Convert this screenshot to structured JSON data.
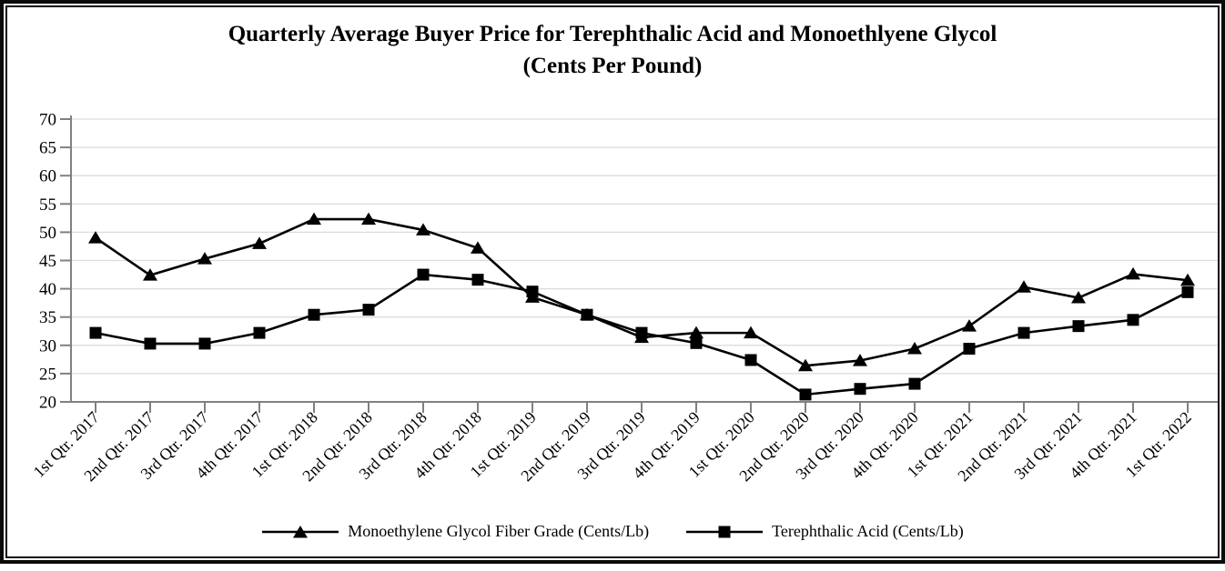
{
  "title": {
    "line1": "Quarterly Average Buyer Price for Terephthalic Acid and Monoethlyene Glycol",
    "line2": "(Cents Per Pound)"
  },
  "chart_data": {
    "type": "line",
    "title": "Quarterly Average Buyer Price for Terephthalic Acid and Monoethlyene Glycol (Cents Per Pound)",
    "categories": [
      "1st Qtr. 2017",
      "2nd Qtr. 2017",
      "3rd Qtr. 2017",
      "4th Qtr. 2017",
      "1st Qtr. 2018",
      "2nd Qtr. 2018",
      "3rd Qtr. 2018",
      "4th Qtr. 2018",
      "1st Qtr. 2019",
      "2nd Qtr. 2019",
      "3rd Qtr. 2019",
      "4th Qtr. 2019",
      "1st Qtr. 2020",
      "2nd Qtr. 2020",
      "3rd Qtr. 2020",
      "4th Qtr. 2020",
      "1st Qtr. 2021",
      "2nd Qtr. 2021",
      "3rd Qtr. 2021",
      "4th Qtr. 2021",
      "1st Qtr. 2022"
    ],
    "series": [
      {
        "name": "Monoethylene Glycol Fiber Grade (Cents/Lb)",
        "marker": "triangle",
        "color": "#000000",
        "values": [
          49.0,
          42.4,
          45.3,
          48.0,
          52.3,
          52.3,
          50.4,
          47.2,
          38.5,
          35.4,
          31.4,
          32.2,
          32.2,
          26.4,
          27.3,
          29.4,
          33.4,
          40.3,
          38.4,
          42.6,
          41.5
        ]
      },
      {
        "name": "Terephthalic Acid (Cents/Lb)",
        "marker": "square",
        "color": "#000000",
        "values": [
          32.2,
          30.3,
          30.3,
          32.2,
          35.4,
          36.3,
          42.5,
          41.6,
          39.5,
          35.4,
          32.2,
          30.4,
          27.4,
          21.3,
          22.3,
          23.2,
          29.4,
          32.2,
          33.4,
          34.5,
          39.4
        ]
      }
    ],
    "xlabel": "",
    "ylabel": "",
    "ylim": [
      20,
      70
    ],
    "yticks": [
      20,
      25,
      30,
      35,
      40,
      45,
      50,
      55,
      60,
      65,
      70
    ],
    "grid": true,
    "legend_position": "bottom",
    "colors": {
      "axis": "#808080",
      "grid": "#dcdcdc",
      "line": "#000000"
    }
  }
}
